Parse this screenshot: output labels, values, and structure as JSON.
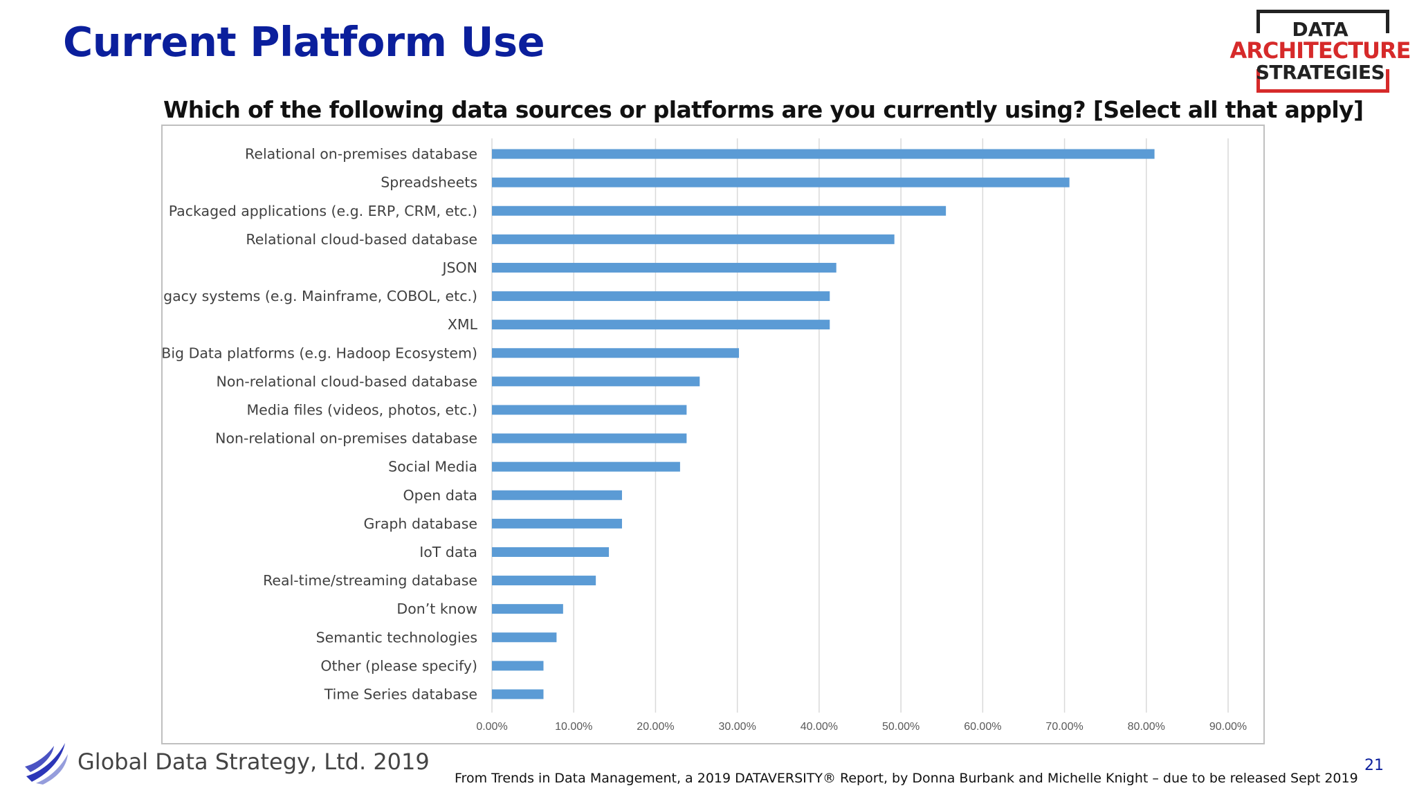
{
  "slide": {
    "title": "Current Platform Use",
    "question": "Which of the following data sources or platforms are you currently using? [Select all that apply]",
    "footer_company": "Global Data Strategy, Ltd. 2019",
    "source": "From Trends in Data Management, a 2019 DATAVERSITY® Report, by Donna Burbank and Michelle Knight – due to be released Sept 2019",
    "page_number": "21"
  },
  "logo": {
    "line1": "DATA",
    "line2": "ARCHITECTURE",
    "line3": "STRATEGIES"
  },
  "colors": {
    "title": "#0b1f9c",
    "bar": "#5b9bd5",
    "logo_red": "#d62a2a",
    "footer_logo_blue": "#2b35b8"
  },
  "chart_data": {
    "type": "bar",
    "orientation": "horizontal",
    "categories": [
      "Relational on-premises database",
      "Spreadsheets",
      "Packaged applications (e.g. ERP, CRM, etc.)",
      "Relational cloud-based database",
      "JSON",
      "Legacy systems (e.g. Mainframe, COBOL, etc.)",
      "XML",
      "Big Data platforms (e.g. Hadoop Ecosystem)",
      "Non-relational cloud-based database",
      "Media files (videos, photos, etc.)",
      "Non-relational on-premises database",
      "Social Media",
      "Open data",
      "Graph database",
      "IoT data",
      "Real-time/streaming database",
      "Don’t know",
      "Semantic technologies",
      "Other (please specify)",
      "Time Series database"
    ],
    "values": [
      81.0,
      70.6,
      55.5,
      49.2,
      42.1,
      41.3,
      41.3,
      30.2,
      25.4,
      23.8,
      23.8,
      23.0,
      15.9,
      15.9,
      14.3,
      12.7,
      8.7,
      7.9,
      6.3,
      6.3
    ],
    "xlim": [
      0,
      90
    ],
    "x_ticks": [
      "0.00%",
      "10.00%",
      "20.00%",
      "30.00%",
      "40.00%",
      "50.00%",
      "60.00%",
      "70.00%",
      "80.00%",
      "90.00%"
    ],
    "grid": true,
    "legend": "none"
  }
}
